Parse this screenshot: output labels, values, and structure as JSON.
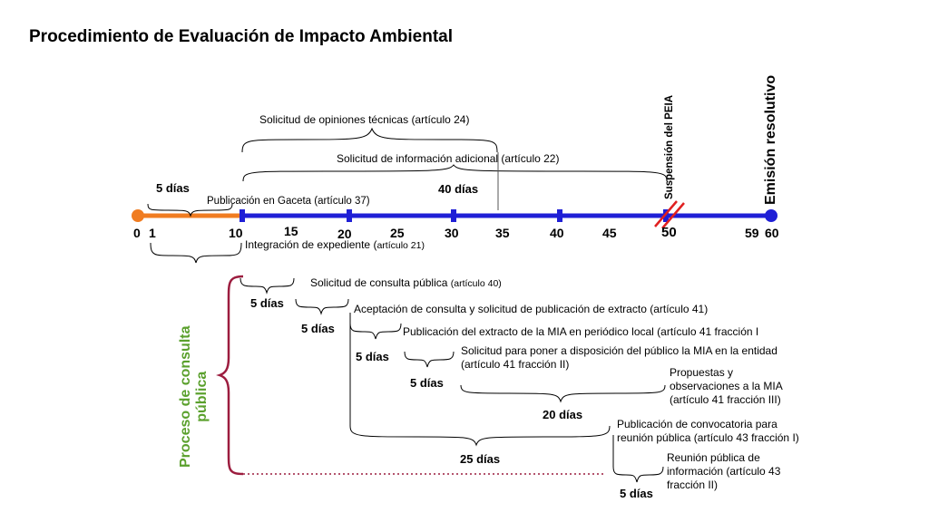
{
  "title": "Procedimiento de Evaluación de Impacto Ambiental",
  "timeline": {
    "ticks": [
      "0",
      "1",
      "10",
      "15",
      "20",
      "25",
      "30",
      "35",
      "40",
      "45",
      "50",
      "59",
      "60"
    ],
    "days_5_top": "5 días",
    "days_40": "40 días",
    "publicacion_gaceta": "Publicación en Gaceta (artículo 37)",
    "opiniones_tecnicas": "Solicitud de opiniones técnicas (artículo 24)",
    "informacion_adicional": "Solicitud de información adicional (artículo 22)",
    "integracion": "Integración de expediente (",
    "integracion_art": "artículo 21)",
    "suspension": "Suspensión del PEIA",
    "emision": "Emisión resolutivo"
  },
  "consulta": {
    "label_line1": "Proceso de consulta",
    "label_line2": "pública",
    "solicitud": "Solicitud de consulta pública ",
    "solicitud_art": "(artículo 40)",
    "aceptacion": "Aceptación de  consulta y solicitud de publicación de extracto (artículo 41)",
    "publicacion_extracto": "Publicación del extracto de la MIA en periódico local (artículo 41 fracción I",
    "poner_disposicion_1": "Solicitud para poner a disposición del público la MIA en la entidad",
    "poner_disposicion_2": "(artículo 41 fracción II)",
    "propuestas_1": "Propuestas y",
    "propuestas_2": "observaciones a la MIA",
    "propuestas_3": "(artículo 41 fracción III)",
    "convocatoria_1": "Publicación de convocatoria para",
    "convocatoria_2": "reunión pública (artículo 43 fracción I)",
    "reunion_1": "Reunión pública de",
    "reunion_2": "información (artículo 43",
    "reunion_3": "fracción II)",
    "d5a": "5 días",
    "d5b": "5 días",
    "d5c": "5 días",
    "d5d": "5 días",
    "d20": "20 días",
    "d25": "25 días",
    "d5e": "5 días"
  },
  "colors": {
    "timeline_blue": "#1f1fd6",
    "orange": "#f07c21",
    "green": "#5aa02c",
    "maroon": "#9c1d3f",
    "red": "#e02020"
  }
}
